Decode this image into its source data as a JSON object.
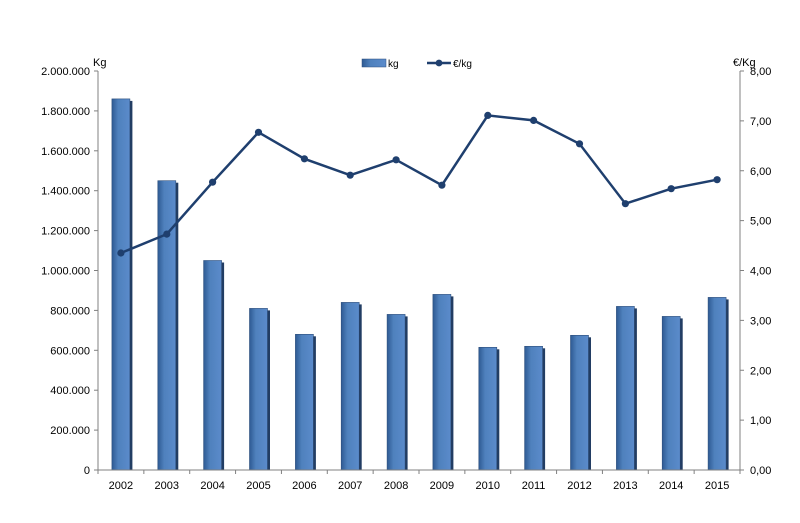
{
  "chart_data": {
    "type": "bar",
    "categories": [
      "2002",
      "2003",
      "2004",
      "2005",
      "2006",
      "2007",
      "2008",
      "2009",
      "2010",
      "2011",
      "2012",
      "2013",
      "2014",
      "2015"
    ],
    "series": [
      {
        "name": "kg",
        "type": "bar",
        "axis": "left",
        "color": "#4F81BD",
        "values": [
          1860000,
          1450000,
          1050000,
          810000,
          680000,
          840000,
          780000,
          880000,
          615000,
          620000,
          675000,
          820000,
          770000,
          865000
        ]
      },
      {
        "name": "€/kg",
        "type": "line",
        "axis": "right",
        "color": "#1F3F6E",
        "values": [
          4.35,
          4.73,
          5.77,
          6.77,
          6.24,
          5.91,
          6.22,
          5.71,
          7.11,
          7.01,
          6.54,
          5.34,
          5.64,
          5.82
        ]
      }
    ],
    "ylabel_left": "Kg",
    "ylabel_right": "€/Kg",
    "ylim_left": [
      0,
      2000000
    ],
    "ylim_right": [
      0,
      8
    ],
    "y_ticks_left": [
      "0",
      "200.000",
      "400.000",
      "600.000",
      "800.000",
      "1.000.000",
      "1.200.000",
      "1.400.000",
      "1.600.000",
      "1.800.000",
      "2.000.000"
    ],
    "y_ticks_right": [
      "0,00",
      "1,00",
      "2,00",
      "3,00",
      "4,00",
      "5,00",
      "6,00",
      "7,00",
      "8,00"
    ],
    "grid": false,
    "legend_position": "top-center"
  }
}
